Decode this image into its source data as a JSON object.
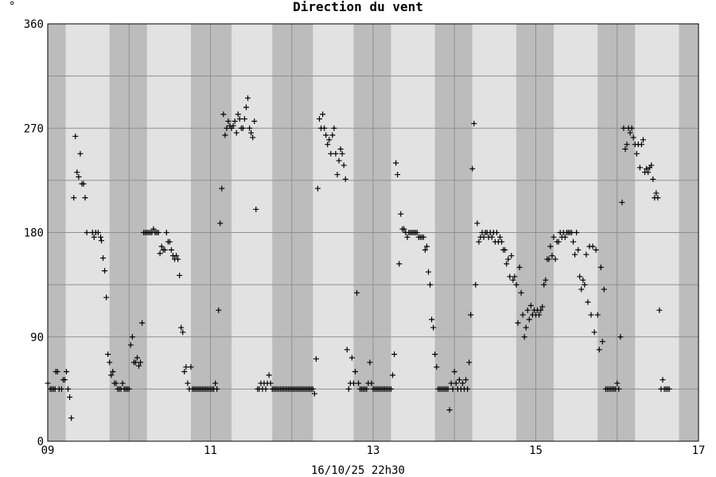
{
  "chart_data": {
    "type": "scatter",
    "title": "Direction du vent",
    "unit": "°",
    "footer": "16/10/25 22h30",
    "marker": "+",
    "colors": {
      "plot_light": "#e2e2e2",
      "plot_dark": "#bcbcbc",
      "grid": "#8f8f8f",
      "marker": "#000000"
    },
    "x_label_ticks": [
      {
        "day": 0,
        "label": "09"
      },
      {
        "day": 2,
        "label": "11"
      },
      {
        "day": 4,
        "label": "13"
      },
      {
        "day": 6,
        "label": "15"
      },
      {
        "day": 8,
        "label": "17"
      }
    ],
    "xlim": [
      0,
      8
    ],
    "ylim": [
      0,
      360
    ],
    "y_ticks": [
      0,
      90,
      180,
      270,
      360
    ],
    "y_gridlines": [
      45,
      90,
      135,
      180,
      225,
      270,
      315
    ],
    "x_gridlines": [
      1,
      2,
      3,
      4,
      5,
      6,
      7
    ],
    "night_bands": [
      [
        0.0,
        0.22
      ],
      [
        0.76,
        1.22
      ],
      [
        1.76,
        2.26
      ],
      [
        2.76,
        3.26
      ],
      [
        3.76,
        4.22
      ],
      [
        4.76,
        5.22
      ],
      [
        5.76,
        6.22
      ],
      [
        6.76,
        7.22
      ],
      [
        7.76,
        8.0
      ]
    ],
    "points": [
      [
        0.0,
        50
      ],
      [
        0.03,
        45
      ],
      [
        0.05,
        45
      ],
      [
        0.07,
        45
      ],
      [
        0.09,
        45
      ],
      [
        0.1,
        60
      ],
      [
        0.12,
        60
      ],
      [
        0.14,
        45
      ],
      [
        0.17,
        45
      ],
      [
        0.19,
        53
      ],
      [
        0.21,
        53
      ],
      [
        0.23,
        60
      ],
      [
        0.25,
        45
      ],
      [
        0.27,
        38
      ],
      [
        0.29,
        20
      ],
      [
        0.32,
        210
      ],
      [
        0.34,
        263
      ],
      [
        0.36,
        232
      ],
      [
        0.38,
        228
      ],
      [
        0.4,
        248
      ],
      [
        0.42,
        222
      ],
      [
        0.44,
        222
      ],
      [
        0.46,
        210
      ],
      [
        0.48,
        180
      ],
      [
        0.55,
        180
      ],
      [
        0.57,
        176
      ],
      [
        0.59,
        180
      ],
      [
        0.62,
        180
      ],
      [
        0.65,
        176
      ],
      [
        0.66,
        173
      ],
      [
        0.68,
        158
      ],
      [
        0.7,
        147
      ],
      [
        0.72,
        124
      ],
      [
        0.74,
        75
      ],
      [
        0.76,
        68
      ],
      [
        0.78,
        57
      ],
      [
        0.8,
        60
      ],
      [
        0.82,
        50
      ],
      [
        0.84,
        50
      ],
      [
        0.86,
        45
      ],
      [
        0.88,
        45
      ],
      [
        0.9,
        45
      ],
      [
        0.92,
        50
      ],
      [
        0.94,
        45
      ],
      [
        0.96,
        45
      ],
      [
        0.98,
        45
      ],
      [
        1.0,
        45
      ],
      [
        1.02,
        83
      ],
      [
        1.04,
        90
      ],
      [
        1.06,
        68
      ],
      [
        1.08,
        68
      ],
      [
        1.1,
        72
      ],
      [
        1.12,
        65
      ],
      [
        1.14,
        68
      ],
      [
        1.16,
        102
      ],
      [
        1.18,
        180
      ],
      [
        1.2,
        180
      ],
      [
        1.22,
        180
      ],
      [
        1.24,
        180
      ],
      [
        1.26,
        180
      ],
      [
        1.28,
        180
      ],
      [
        1.3,
        183
      ],
      [
        1.32,
        180
      ],
      [
        1.34,
        180
      ],
      [
        1.36,
        180
      ],
      [
        1.38,
        162
      ],
      [
        1.4,
        168
      ],
      [
        1.42,
        165
      ],
      [
        1.44,
        165
      ],
      [
        1.46,
        180
      ],
      [
        1.48,
        172
      ],
      [
        1.5,
        172
      ],
      [
        1.52,
        165
      ],
      [
        1.54,
        160
      ],
      [
        1.56,
        157
      ],
      [
        1.58,
        160
      ],
      [
        1.6,
        157
      ],
      [
        1.62,
        143
      ],
      [
        1.64,
        98
      ],
      [
        1.66,
        94
      ],
      [
        1.68,
        60
      ],
      [
        1.7,
        64
      ],
      [
        1.72,
        50
      ],
      [
        1.74,
        45
      ],
      [
        1.76,
        64
      ],
      [
        1.78,
        45
      ],
      [
        1.8,
        45
      ],
      [
        1.82,
        45
      ],
      [
        1.84,
        45
      ],
      [
        1.86,
        45
      ],
      [
        1.88,
        45
      ],
      [
        1.9,
        45
      ],
      [
        1.92,
        45
      ],
      [
        1.94,
        45
      ],
      [
        1.96,
        45
      ],
      [
        1.98,
        45
      ],
      [
        2.0,
        45
      ],
      [
        2.02,
        45
      ],
      [
        2.04,
        45
      ],
      [
        2.06,
        50
      ],
      [
        2.08,
        45
      ],
      [
        2.1,
        113
      ],
      [
        2.12,
        188
      ],
      [
        2.14,
        218
      ],
      [
        2.16,
        282
      ],
      [
        2.18,
        264
      ],
      [
        2.2,
        270
      ],
      [
        2.22,
        276
      ],
      [
        2.24,
        272
      ],
      [
        2.26,
        270
      ],
      [
        2.28,
        272
      ],
      [
        2.3,
        276
      ],
      [
        2.32,
        266
      ],
      [
        2.34,
        282
      ],
      [
        2.36,
        278
      ],
      [
        2.38,
        270
      ],
      [
        2.4,
        270
      ],
      [
        2.42,
        278
      ],
      [
        2.44,
        288
      ],
      [
        2.46,
        296
      ],
      [
        2.48,
        270
      ],
      [
        2.5,
        266
      ],
      [
        2.52,
        262
      ],
      [
        2.54,
        276
      ],
      [
        2.56,
        200
      ],
      [
        2.58,
        45
      ],
      [
        2.6,
        45
      ],
      [
        2.62,
        50
      ],
      [
        2.64,
        45
      ],
      [
        2.66,
        50
      ],
      [
        2.68,
        45
      ],
      [
        2.7,
        50
      ],
      [
        2.72,
        57
      ],
      [
        2.74,
        50
      ],
      [
        2.76,
        45
      ],
      [
        2.78,
        45
      ],
      [
        2.8,
        45
      ],
      [
        2.82,
        45
      ],
      [
        2.84,
        45
      ],
      [
        2.86,
        45
      ],
      [
        2.88,
        45
      ],
      [
        2.9,
        45
      ],
      [
        2.92,
        45
      ],
      [
        2.94,
        45
      ],
      [
        2.96,
        45
      ],
      [
        2.98,
        45
      ],
      [
        3.0,
        45
      ],
      [
        3.02,
        45
      ],
      [
        3.04,
        45
      ],
      [
        3.06,
        45
      ],
      [
        3.08,
        45
      ],
      [
        3.1,
        45
      ],
      [
        3.12,
        45
      ],
      [
        3.14,
        45
      ],
      [
        3.16,
        45
      ],
      [
        3.18,
        45
      ],
      [
        3.2,
        45
      ],
      [
        3.22,
        45
      ],
      [
        3.24,
        45
      ],
      [
        3.26,
        45
      ],
      [
        3.28,
        41
      ],
      [
        3.3,
        71
      ],
      [
        3.32,
        218
      ],
      [
        3.34,
        278
      ],
      [
        3.36,
        270
      ],
      [
        3.38,
        282
      ],
      [
        3.4,
        270
      ],
      [
        3.42,
        264
      ],
      [
        3.44,
        256
      ],
      [
        3.46,
        260
      ],
      [
        3.48,
        248
      ],
      [
        3.5,
        264
      ],
      [
        3.52,
        270
      ],
      [
        3.54,
        248
      ],
      [
        3.56,
        230
      ],
      [
        3.58,
        242
      ],
      [
        3.6,
        252
      ],
      [
        3.62,
        248
      ],
      [
        3.64,
        238
      ],
      [
        3.66,
        226
      ],
      [
        3.68,
        79
      ],
      [
        3.7,
        45
      ],
      [
        3.72,
        50
      ],
      [
        3.74,
        72
      ],
      [
        3.76,
        50
      ],
      [
        3.78,
        60
      ],
      [
        3.8,
        128
      ],
      [
        3.82,
        50
      ],
      [
        3.84,
        45
      ],
      [
        3.86,
        45
      ],
      [
        3.88,
        45
      ],
      [
        3.9,
        45
      ],
      [
        3.92,
        45
      ],
      [
        3.94,
        50
      ],
      [
        3.96,
        68
      ],
      [
        3.98,
        50
      ],
      [
        4.0,
        45
      ],
      [
        4.02,
        45
      ],
      [
        4.04,
        45
      ],
      [
        4.06,
        45
      ],
      [
        4.08,
        45
      ],
      [
        4.1,
        45
      ],
      [
        4.12,
        45
      ],
      [
        4.14,
        45
      ],
      [
        4.16,
        45
      ],
      [
        4.18,
        45
      ],
      [
        4.2,
        45
      ],
      [
        4.22,
        45
      ],
      [
        4.24,
        57
      ],
      [
        4.26,
        75
      ],
      [
        4.28,
        240
      ],
      [
        4.3,
        230
      ],
      [
        4.32,
        153
      ],
      [
        4.34,
        196
      ],
      [
        4.36,
        183
      ],
      [
        4.38,
        183
      ],
      [
        4.4,
        180
      ],
      [
        4.42,
        176
      ],
      [
        4.44,
        180
      ],
      [
        4.46,
        180
      ],
      [
        4.48,
        180
      ],
      [
        4.5,
        180
      ],
      [
        4.52,
        180
      ],
      [
        4.54,
        180
      ],
      [
        4.56,
        176
      ],
      [
        4.58,
        176
      ],
      [
        4.6,
        176
      ],
      [
        4.62,
        176
      ],
      [
        4.64,
        165
      ],
      [
        4.66,
        168
      ],
      [
        4.68,
        146
      ],
      [
        4.7,
        135
      ],
      [
        4.72,
        105
      ],
      [
        4.74,
        98
      ],
      [
        4.76,
        75
      ],
      [
        4.78,
        64
      ],
      [
        4.8,
        45
      ],
      [
        4.82,
        45
      ],
      [
        4.84,
        45
      ],
      [
        4.86,
        45
      ],
      [
        4.88,
        45
      ],
      [
        4.9,
        45
      ],
      [
        4.92,
        45
      ],
      [
        4.94,
        27
      ],
      [
        4.96,
        50
      ],
      [
        4.98,
        45
      ],
      [
        5.0,
        60
      ],
      [
        5.02,
        50
      ],
      [
        5.04,
        45
      ],
      [
        5.06,
        53
      ],
      [
        5.08,
        45
      ],
      [
        5.1,
        50
      ],
      [
        5.12,
        45
      ],
      [
        5.14,
        53
      ],
      [
        5.16,
        45
      ],
      [
        5.18,
        68
      ],
      [
        5.2,
        109
      ],
      [
        5.22,
        235
      ],
      [
        5.24,
        274
      ],
      [
        5.26,
        135
      ],
      [
        5.28,
        188
      ],
      [
        5.3,
        172
      ],
      [
        5.32,
        176
      ],
      [
        5.34,
        180
      ],
      [
        5.36,
        176
      ],
      [
        5.38,
        180
      ],
      [
        5.4,
        180
      ],
      [
        5.42,
        176
      ],
      [
        5.44,
        180
      ],
      [
        5.46,
        176
      ],
      [
        5.48,
        180
      ],
      [
        5.5,
        172
      ],
      [
        5.52,
        180
      ],
      [
        5.54,
        172
      ],
      [
        5.56,
        176
      ],
      [
        5.58,
        172
      ],
      [
        5.6,
        165
      ],
      [
        5.62,
        165
      ],
      [
        5.64,
        153
      ],
      [
        5.66,
        157
      ],
      [
        5.68,
        142
      ],
      [
        5.7,
        160
      ],
      [
        5.72,
        139
      ],
      [
        5.74,
        142
      ],
      [
        5.76,
        135
      ],
      [
        5.78,
        102
      ],
      [
        5.8,
        150
      ],
      [
        5.82,
        128
      ],
      [
        5.84,
        109
      ],
      [
        5.86,
        90
      ],
      [
        5.88,
        98
      ],
      [
        5.9,
        113
      ],
      [
        5.92,
        105
      ],
      [
        5.94,
        117
      ],
      [
        5.96,
        109
      ],
      [
        5.98,
        113
      ],
      [
        6.0,
        109
      ],
      [
        6.02,
        113
      ],
      [
        6.04,
        109
      ],
      [
        6.06,
        113
      ],
      [
        6.08,
        116
      ],
      [
        6.1,
        135
      ],
      [
        6.12,
        139
      ],
      [
        6.14,
        157
      ],
      [
        6.16,
        157
      ],
      [
        6.18,
        168
      ],
      [
        6.2,
        160
      ],
      [
        6.22,
        176
      ],
      [
        6.24,
        157
      ],
      [
        6.26,
        172
      ],
      [
        6.28,
        172
      ],
      [
        6.3,
        180
      ],
      [
        6.32,
        176
      ],
      [
        6.34,
        180
      ],
      [
        6.36,
        176
      ],
      [
        6.38,
        180
      ],
      [
        6.4,
        180
      ],
      [
        6.42,
        180
      ],
      [
        6.44,
        180
      ],
      [
        6.46,
        172
      ],
      [
        6.48,
        161
      ],
      [
        6.5,
        180
      ],
      [
        6.52,
        165
      ],
      [
        6.54,
        142
      ],
      [
        6.56,
        131
      ],
      [
        6.58,
        139
      ],
      [
        6.6,
        135
      ],
      [
        6.62,
        161
      ],
      [
        6.64,
        120
      ],
      [
        6.66,
        168
      ],
      [
        6.68,
        109
      ],
      [
        6.7,
        168
      ],
      [
        6.72,
        94
      ],
      [
        6.74,
        165
      ],
      [
        6.76,
        109
      ],
      [
        6.78,
        79
      ],
      [
        6.8,
        150
      ],
      [
        6.82,
        86
      ],
      [
        6.84,
        131
      ],
      [
        6.86,
        45
      ],
      [
        6.88,
        45
      ],
      [
        6.9,
        45
      ],
      [
        6.92,
        45
      ],
      [
        6.94,
        45
      ],
      [
        6.96,
        45
      ],
      [
        6.98,
        45
      ],
      [
        7.0,
        50
      ],
      [
        7.02,
        45
      ],
      [
        7.04,
        90
      ],
      [
        7.06,
        206
      ],
      [
        7.08,
        270
      ],
      [
        7.1,
        252
      ],
      [
        7.12,
        256
      ],
      [
        7.14,
        270
      ],
      [
        7.16,
        266
      ],
      [
        7.18,
        270
      ],
      [
        7.2,
        262
      ],
      [
        7.22,
        256
      ],
      [
        7.24,
        248
      ],
      [
        7.26,
        256
      ],
      [
        7.28,
        236
      ],
      [
        7.3,
        256
      ],
      [
        7.32,
        260
      ],
      [
        7.34,
        232
      ],
      [
        7.36,
        235
      ],
      [
        7.38,
        232
      ],
      [
        7.4,
        236
      ],
      [
        7.42,
        238
      ],
      [
        7.44,
        226
      ],
      [
        7.46,
        210
      ],
      [
        7.48,
        214
      ],
      [
        7.5,
        210
      ],
      [
        7.52,
        113
      ],
      [
        7.54,
        45
      ],
      [
        7.56,
        53
      ],
      [
        7.58,
        45
      ],
      [
        7.6,
        45
      ],
      [
        7.62,
        45
      ],
      [
        7.64,
        45
      ]
    ]
  }
}
